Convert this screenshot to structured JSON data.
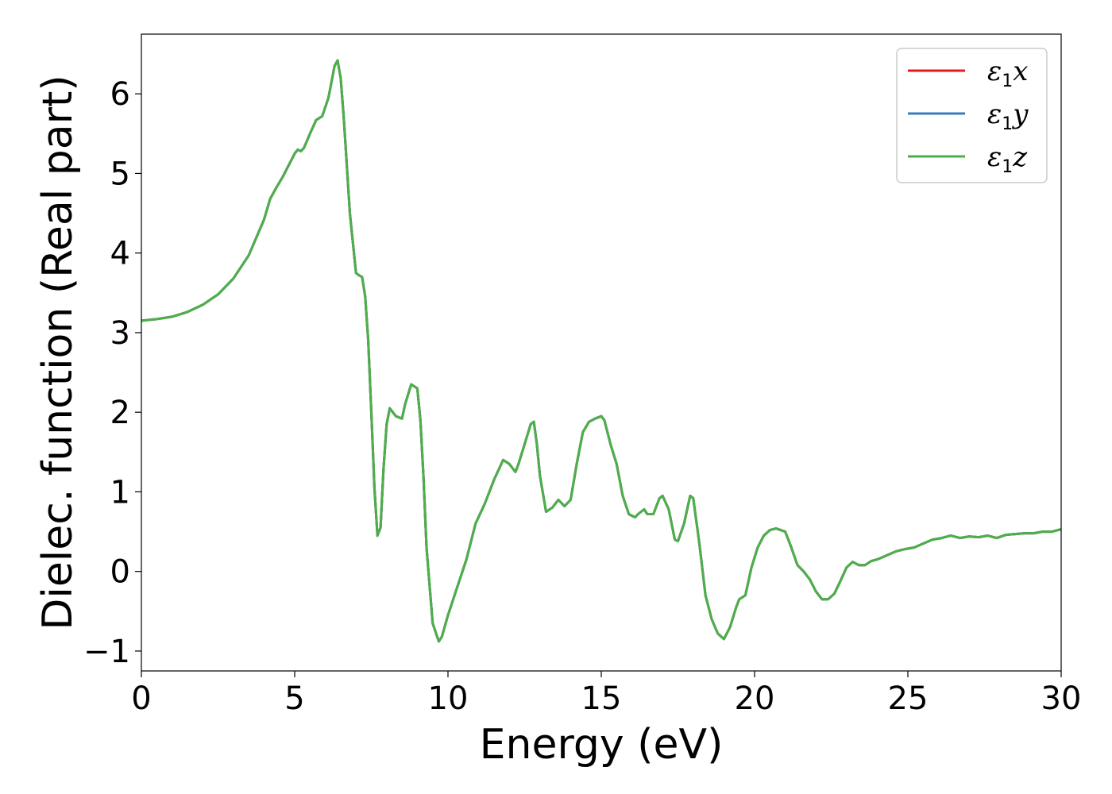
{
  "chart_data": {
    "type": "line",
    "title": "",
    "xlabel": "Energy (eV)",
    "ylabel": "Dielec. function (Real part)",
    "xlim": [
      0,
      30
    ],
    "ylim": [
      -1.25,
      6.75
    ],
    "x_ticks": [
      0,
      5,
      10,
      15,
      20,
      25,
      30
    ],
    "x_tick_labels": [
      "0",
      "5",
      "10",
      "15",
      "20",
      "25",
      "30"
    ],
    "y_ticks": [
      -1,
      0,
      1,
      2,
      3,
      4,
      5,
      6
    ],
    "y_tick_labels": [
      "−1",
      "0",
      "1",
      "2",
      "3",
      "4",
      "5",
      "6"
    ],
    "grid": false,
    "legend_position": "top-right",
    "colors": {
      "x": "#e41a1c",
      "y": "#377eb8",
      "z": "#4daf4a"
    },
    "x": [
      0,
      0.5,
      1,
      1.5,
      2,
      2.5,
      3,
      3.5,
      4,
      4.2,
      4.4,
      4.6,
      4.8,
      5.0,
      5.1,
      5.2,
      5.3,
      5.5,
      5.7,
      5.9,
      6.1,
      6.3,
      6.4,
      6.5,
      6.6,
      6.8,
      7.0,
      7.1,
      7.2,
      7.3,
      7.4,
      7.5,
      7.6,
      7.7,
      7.8,
      7.9,
      8.0,
      8.1,
      8.3,
      8.5,
      8.6,
      8.8,
      9.0,
      9.1,
      9.2,
      9.3,
      9.5,
      9.7,
      9.8,
      10.0,
      10.3,
      10.6,
      10.9,
      11.2,
      11.5,
      11.8,
      12.0,
      12.2,
      12.3,
      12.5,
      12.7,
      12.8,
      12.9,
      13.0,
      13.2,
      13.4,
      13.6,
      13.8,
      14.0,
      14.2,
      14.4,
      14.6,
      14.8,
      15.0,
      15.1,
      15.3,
      15.5,
      15.7,
      15.9,
      16.1,
      16.2,
      16.4,
      16.5,
      16.7,
      16.9,
      17.0,
      17.2,
      17.4,
      17.5,
      17.7,
      17.9,
      18.0,
      18.2,
      18.4,
      18.6,
      18.8,
      19.0,
      19.2,
      19.4,
      19.5,
      19.7,
      19.9,
      20.1,
      20.3,
      20.5,
      20.7,
      21.0,
      21.2,
      21.4,
      21.6,
      21.8,
      22.0,
      22.2,
      22.4,
      22.6,
      22.8,
      23.0,
      23.2,
      23.4,
      23.6,
      23.8,
      24.0,
      24.3,
      24.6,
      24.9,
      25.2,
      25.5,
      25.8,
      26.1,
      26.4,
      26.7,
      27.0,
      27.3,
      27.6,
      27.9,
      28.2,
      28.5,
      28.8,
      29.1,
      29.4,
      29.7,
      30.0
    ],
    "series": [
      {
        "name": "x",
        "label_base": "ε",
        "label_sub": "1",
        "label_var": "x",
        "values": [
          3.15,
          3.17,
          3.2,
          3.26,
          3.35,
          3.48,
          3.68,
          3.97,
          4.42,
          4.68,
          4.82,
          4.95,
          5.1,
          5.25,
          5.3,
          5.28,
          5.32,
          5.5,
          5.67,
          5.72,
          5.95,
          6.35,
          6.42,
          6.2,
          5.7,
          4.5,
          3.75,
          3.72,
          3.7,
          3.45,
          2.9,
          2.0,
          1.05,
          0.45,
          0.55,
          1.3,
          1.85,
          2.05,
          1.95,
          1.92,
          2.1,
          2.35,
          2.3,
          1.9,
          1.2,
          0.3,
          -0.65,
          -0.88,
          -0.82,
          -0.55,
          -0.2,
          0.15,
          0.6,
          0.85,
          1.15,
          1.4,
          1.35,
          1.25,
          1.35,
          1.6,
          1.85,
          1.88,
          1.6,
          1.2,
          0.75,
          0.8,
          0.9,
          0.82,
          0.9,
          1.35,
          1.75,
          1.88,
          1.92,
          1.95,
          1.9,
          1.6,
          1.35,
          0.95,
          0.72,
          0.68,
          0.72,
          0.78,
          0.72,
          0.72,
          0.92,
          0.95,
          0.78,
          0.4,
          0.38,
          0.6,
          0.95,
          0.92,
          0.35,
          -0.3,
          -0.6,
          -0.78,
          -0.85,
          -0.7,
          -0.45,
          -0.35,
          -0.3,
          0.05,
          0.3,
          0.45,
          0.52,
          0.54,
          0.5,
          0.3,
          0.08,
          0.0,
          -0.1,
          -0.25,
          -0.35,
          -0.35,
          -0.28,
          -0.12,
          0.05,
          0.12,
          0.08,
          0.08,
          0.13,
          0.15,
          0.2,
          0.25,
          0.28,
          0.3,
          0.35,
          0.4,
          0.42,
          0.45,
          0.42,
          0.44,
          0.43,
          0.45,
          0.42,
          0.46,
          0.47,
          0.48,
          0.48,
          0.5,
          0.5,
          0.53
        ]
      },
      {
        "name": "y",
        "label_base": "ε",
        "label_sub": "1",
        "label_var": "y",
        "values": [
          3.15,
          3.17,
          3.2,
          3.26,
          3.35,
          3.48,
          3.68,
          3.97,
          4.42,
          4.68,
          4.82,
          4.95,
          5.1,
          5.25,
          5.3,
          5.28,
          5.32,
          5.5,
          5.67,
          5.72,
          5.95,
          6.35,
          6.42,
          6.2,
          5.7,
          4.5,
          3.75,
          3.72,
          3.7,
          3.45,
          2.9,
          2.0,
          1.05,
          0.45,
          0.55,
          1.3,
          1.85,
          2.05,
          1.95,
          1.92,
          2.1,
          2.35,
          2.3,
          1.9,
          1.2,
          0.3,
          -0.65,
          -0.88,
          -0.82,
          -0.55,
          -0.2,
          0.15,
          0.6,
          0.85,
          1.15,
          1.4,
          1.35,
          1.25,
          1.35,
          1.6,
          1.85,
          1.88,
          1.6,
          1.2,
          0.75,
          0.8,
          0.9,
          0.82,
          0.9,
          1.35,
          1.75,
          1.88,
          1.92,
          1.95,
          1.9,
          1.6,
          1.35,
          0.95,
          0.72,
          0.68,
          0.72,
          0.78,
          0.72,
          0.72,
          0.92,
          0.95,
          0.78,
          0.4,
          0.38,
          0.6,
          0.95,
          0.92,
          0.35,
          -0.3,
          -0.6,
          -0.78,
          -0.85,
          -0.7,
          -0.45,
          -0.35,
          -0.3,
          0.05,
          0.3,
          0.45,
          0.52,
          0.54,
          0.5,
          0.3,
          0.08,
          0.0,
          -0.1,
          -0.25,
          -0.35,
          -0.35,
          -0.28,
          -0.12,
          0.05,
          0.12,
          0.08,
          0.08,
          0.13,
          0.15,
          0.2,
          0.25,
          0.28,
          0.3,
          0.35,
          0.4,
          0.42,
          0.45,
          0.42,
          0.44,
          0.43,
          0.45,
          0.42,
          0.46,
          0.47,
          0.48,
          0.48,
          0.5,
          0.5,
          0.53
        ]
      },
      {
        "name": "z",
        "label_base": "ε",
        "label_sub": "1",
        "label_var": "z",
        "values": [
          3.15,
          3.17,
          3.2,
          3.26,
          3.35,
          3.48,
          3.68,
          3.97,
          4.42,
          4.68,
          4.82,
          4.95,
          5.1,
          5.25,
          5.3,
          5.28,
          5.32,
          5.5,
          5.67,
          5.72,
          5.95,
          6.35,
          6.42,
          6.2,
          5.7,
          4.5,
          3.75,
          3.72,
          3.7,
          3.45,
          2.9,
          2.0,
          1.05,
          0.45,
          0.55,
          1.3,
          1.85,
          2.05,
          1.95,
          1.92,
          2.1,
          2.35,
          2.3,
          1.9,
          1.2,
          0.3,
          -0.65,
          -0.88,
          -0.82,
          -0.55,
          -0.2,
          0.15,
          0.6,
          0.85,
          1.15,
          1.4,
          1.35,
          1.25,
          1.35,
          1.6,
          1.85,
          1.88,
          1.6,
          1.2,
          0.75,
          0.8,
          0.9,
          0.82,
          0.9,
          1.35,
          1.75,
          1.88,
          1.92,
          1.95,
          1.9,
          1.6,
          1.35,
          0.95,
          0.72,
          0.68,
          0.72,
          0.78,
          0.72,
          0.72,
          0.92,
          0.95,
          0.78,
          0.4,
          0.38,
          0.6,
          0.95,
          0.92,
          0.35,
          -0.3,
          -0.6,
          -0.78,
          -0.85,
          -0.7,
          -0.45,
          -0.35,
          -0.3,
          0.05,
          0.3,
          0.45,
          0.52,
          0.54,
          0.5,
          0.3,
          0.08,
          0.0,
          -0.1,
          -0.25,
          -0.35,
          -0.35,
          -0.28,
          -0.12,
          0.05,
          0.12,
          0.08,
          0.08,
          0.13,
          0.15,
          0.2,
          0.25,
          0.28,
          0.3,
          0.35,
          0.4,
          0.42,
          0.45,
          0.42,
          0.44,
          0.43,
          0.45,
          0.42,
          0.46,
          0.47,
          0.48,
          0.48,
          0.5,
          0.5,
          0.53
        ]
      }
    ]
  }
}
